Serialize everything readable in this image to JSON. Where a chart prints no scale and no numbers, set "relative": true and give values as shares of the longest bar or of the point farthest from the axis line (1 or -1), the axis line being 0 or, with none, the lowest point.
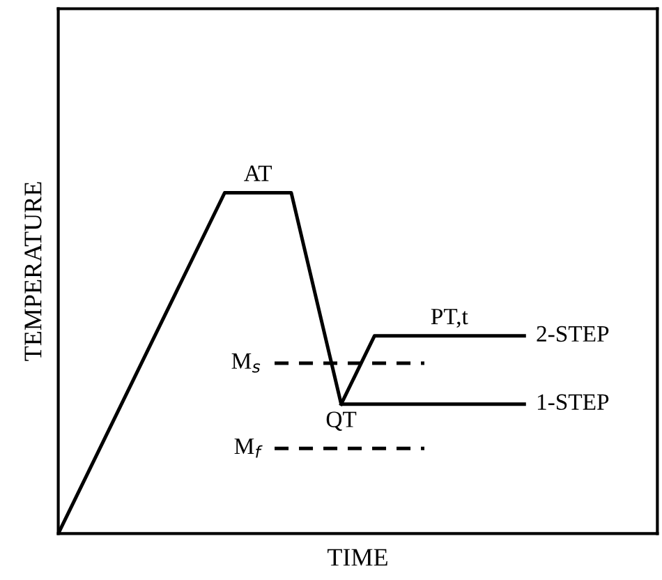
{
  "chart_data": {
    "type": "line",
    "relative": true,
    "xlabel": "TIME",
    "ylabel": "TEMPERATURE",
    "legend": false,
    "marker": "none",
    "categories": [
      null,
      null,
      null,
      null,
      null,
      null,
      null,
      null,
      null,
      null,
      null,
      null,
      null,
      null,
      null,
      null,
      null,
      null,
      null,
      null,
      null,
      null,
      null,
      null,
      null,
      null,
      null,
      null,
      null,
      null,
      null,
      null,
      null,
      null,
      null,
      null
    ],
    "series": [
      {
        "name": "1-STEP",
        "color": "#000000",
        "line_style": "solid",
        "values": [
          0,
          null,
          null,
          null,
          null,
          null,
          null,
          null,
          null,
          null,
          1,
          null,
          null,
          null,
          1,
          null,
          null,
          0.38,
          null,
          null,
          null,
          null,
          null,
          null,
          null,
          null,
          null,
          null,
          0.38,
          null,
          null,
          null,
          null,
          null,
          null,
          null
        ]
      },
      {
        "name": "2-STEP",
        "color": "#000000",
        "line_style": "solid",
        "values": [
          null,
          null,
          null,
          null,
          null,
          null,
          null,
          null,
          null,
          null,
          null,
          null,
          null,
          null,
          null,
          null,
          null,
          0.38,
          null,
          0.58,
          null,
          null,
          null,
          null,
          null,
          null,
          null,
          null,
          0.58,
          null,
          null,
          null,
          null,
          null,
          null,
          null
        ]
      },
      {
        "name": "M$_{s}$",
        "color": "#000000",
        "line_style": "dashed",
        "values": [
          null,
          null,
          null,
          null,
          null,
          null,
          null,
          null,
          null,
          null,
          null,
          null,
          null,
          0.5,
          null,
          null,
          null,
          null,
          null,
          null,
          null,
          null,
          0.5,
          null,
          null,
          null,
          null,
          null,
          null,
          null,
          null,
          null,
          null,
          null,
          null,
          null
        ]
      },
      {
        "name": "M$_{f}$",
        "color": "#000000",
        "line_style": "dashed",
        "values": [
          null,
          null,
          null,
          null,
          null,
          null,
          null,
          null,
          null,
          null,
          null,
          null,
          null,
          0.25,
          null,
          null,
          null,
          null,
          null,
          null,
          null,
          null,
          0.25,
          null,
          null,
          null,
          null,
          null,
          null,
          null,
          null,
          null,
          null,
          null,
          null,
          null
        ]
      }
    ],
    "annotations": [
      "AT",
      "QT",
      "PT,t"
    ]
  }
}
